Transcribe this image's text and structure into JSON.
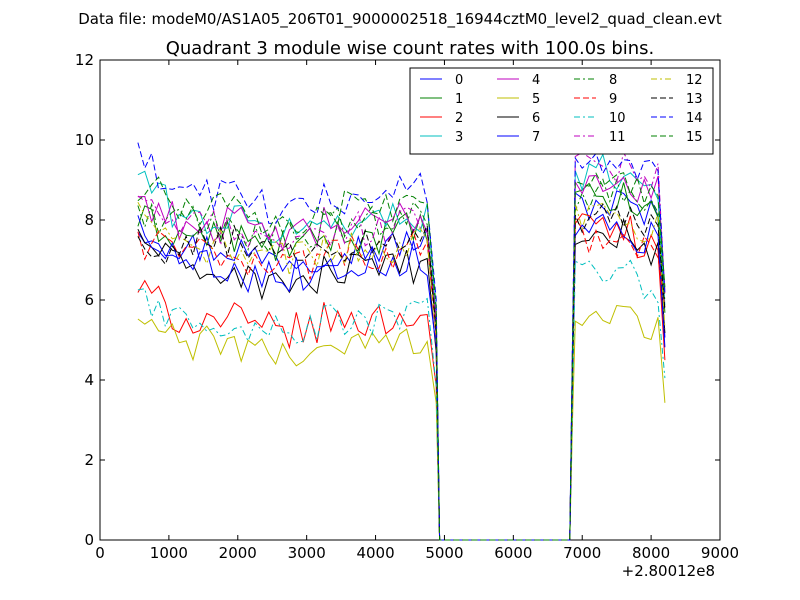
{
  "chart_data": {
    "type": "line",
    "suptitle": "Data file: modeM0/AS1A05_206T01_9000002518_16944cztM0_level2_quad_clean.evt",
    "title": "Quadrant 3 module wise count rates with 100.0s bins.",
    "xlabel": "",
    "ylabel": "",
    "x_offset_label": "+2.80012e8",
    "xlim": [
      0,
      9000
    ],
    "ylim": [
      0,
      12
    ],
    "x_ticks": [
      0,
      1000,
      2000,
      3000,
      4000,
      5000,
      6000,
      7000,
      8000,
      9000
    ],
    "y_ticks": [
      0,
      2,
      4,
      6,
      8,
      10,
      12
    ],
    "x_tick_labels": [
      "0",
      "1000",
      "2000",
      "3000",
      "4000",
      "5000",
      "6000",
      "7000",
      "8000",
      "9000"
    ],
    "y_tick_labels": [
      "0",
      "2",
      "4",
      "6",
      "8",
      "10",
      "12"
    ],
    "grid": false,
    "legend_position": "top-right",
    "gap": [
      4930,
      6820
    ],
    "x_first_segment": [
      550,
      4930
    ],
    "x_second_segment": [
      6820,
      8200
    ],
    "bin_width": 100,
    "series": [
      {
        "name": "0",
        "color": "#0000ff",
        "dash": "solid",
        "level1": 7.3,
        "level2": 8.4,
        "start": 7.9
      },
      {
        "name": "1",
        "color": "#008000",
        "dash": "solid",
        "level1": 7.6,
        "level2": 8.5,
        "start": 8.0
      },
      {
        "name": "2",
        "color": "#ff0000",
        "dash": "solid",
        "level1": 5.5,
        "level2": 7.8,
        "start": 6.3
      },
      {
        "name": "3",
        "color": "#00bfbf",
        "dash": "solid",
        "level1": 8.0,
        "level2": 9.2,
        "start": 9.2
      },
      {
        "name": "4",
        "color": "#bf00bf",
        "dash": "solid",
        "level1": 7.9,
        "level2": 9.0,
        "start": 8.6
      },
      {
        "name": "5",
        "color": "#bfbf00",
        "dash": "solid",
        "level1": 4.9,
        "level2": 5.6,
        "start": 5.5
      },
      {
        "name": "6",
        "color": "#000000",
        "dash": "solid",
        "level1": 6.7,
        "level2": 7.6,
        "start": 7.7
      },
      {
        "name": "7",
        "color": "#0000ff",
        "dash": "solid",
        "level1": 6.9,
        "level2": 7.9,
        "start": 8.0
      },
      {
        "name": "8",
        "color": "#008000",
        "dash": "dashdot",
        "level1": 7.9,
        "level2": 8.6,
        "start": 8.2
      },
      {
        "name": "9",
        "color": "#ff0000",
        "dash": "dashed",
        "level1": 7.2,
        "level2": 7.6,
        "start": 7.5
      },
      {
        "name": "10",
        "color": "#00bfbf",
        "dash": "dashdot",
        "level1": 5.5,
        "level2": 6.6,
        "start": 6.0
      },
      {
        "name": "11",
        "color": "#bf00bf",
        "dash": "dashdot",
        "level1": 7.8,
        "level2": 9.3,
        "start": 8.3
      },
      {
        "name": "12",
        "color": "#bfbf00",
        "dash": "dashdot",
        "level1": 7.3,
        "level2": 8.2,
        "start": 8.1
      },
      {
        "name": "13",
        "color": "#000000",
        "dash": "dashed",
        "level1": 7.4,
        "level2": 8.0,
        "start": 7.2
      },
      {
        "name": "14",
        "color": "#0000ff",
        "dash": "dashed",
        "level1": 8.6,
        "level2": 9.5,
        "start": 9.5
      },
      {
        "name": "15",
        "color": "#008000",
        "dash": "dashed",
        "level1": 8.3,
        "level2": 9.0,
        "start": 8.9
      }
    ]
  }
}
